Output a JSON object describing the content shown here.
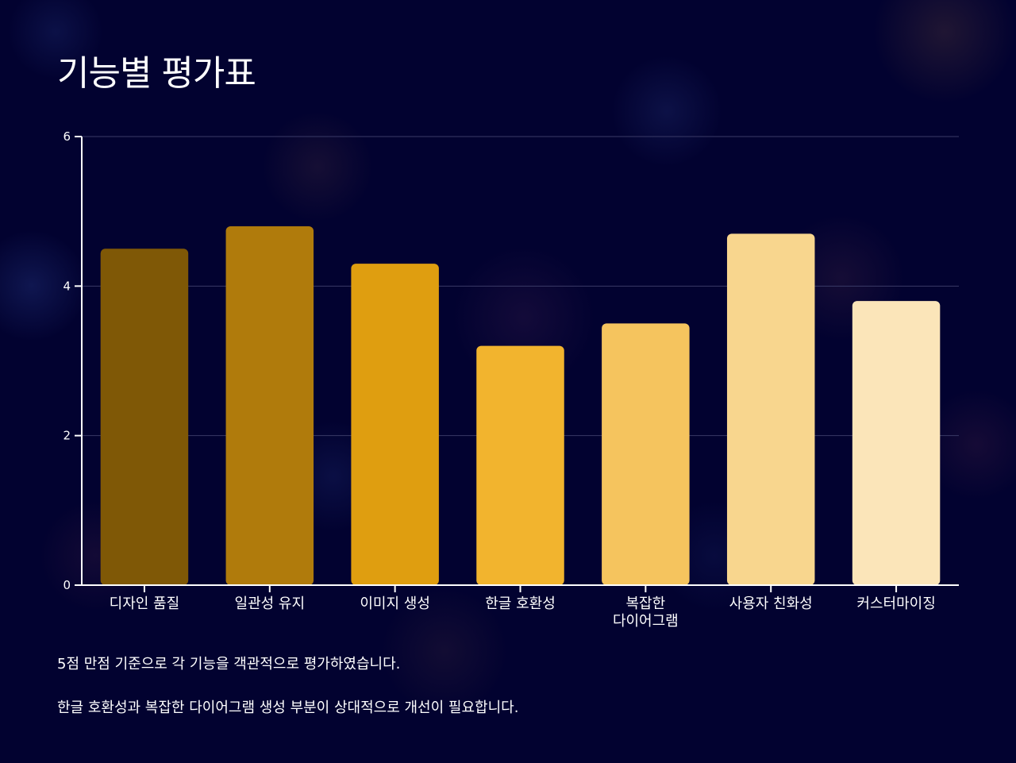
{
  "page": {
    "title": "기능별 평가표",
    "notes": [
      "5점 만점 기준으로 각 기능을 객관적으로 평가하였습니다.",
      "한글 호환성과 복잡한 다이어그램 생성 부분이 상대적으로 개선이 필요합니다."
    ]
  },
  "colors": {
    "background": "#020230",
    "axis": "#ffffff",
    "grid": "#3a3a66"
  },
  "chart_data": {
    "type": "bar",
    "categories": [
      "디자인 품질",
      "일관성 유지",
      "이미지 생성",
      "한글 호환성",
      "복잡한 다이어그램",
      "사용자 친화성",
      "커스터마이징"
    ],
    "category_label_lines": [
      [
        "디자인 품질"
      ],
      [
        "일관성 유지"
      ],
      [
        "이미지 생성"
      ],
      [
        "한글 호환성"
      ],
      [
        "복잡한",
        "다이어그램"
      ],
      [
        "사용자 친화성"
      ],
      [
        "커스터마이징"
      ]
    ],
    "values": [
      4.5,
      4.8,
      4.3,
      3.2,
      3.5,
      4.7,
      3.8
    ],
    "bar_colors": [
      "#7f5806",
      "#b07b0c",
      "#df9e10",
      "#f2b42e",
      "#f5c45e",
      "#f8d68e",
      "#fbe5b9"
    ],
    "ylim": [
      0,
      6
    ],
    "yticks": [
      0,
      2,
      4,
      6
    ],
    "grid": true,
    "legend": "none",
    "title": "",
    "xlabel": "",
    "ylabel": ""
  }
}
